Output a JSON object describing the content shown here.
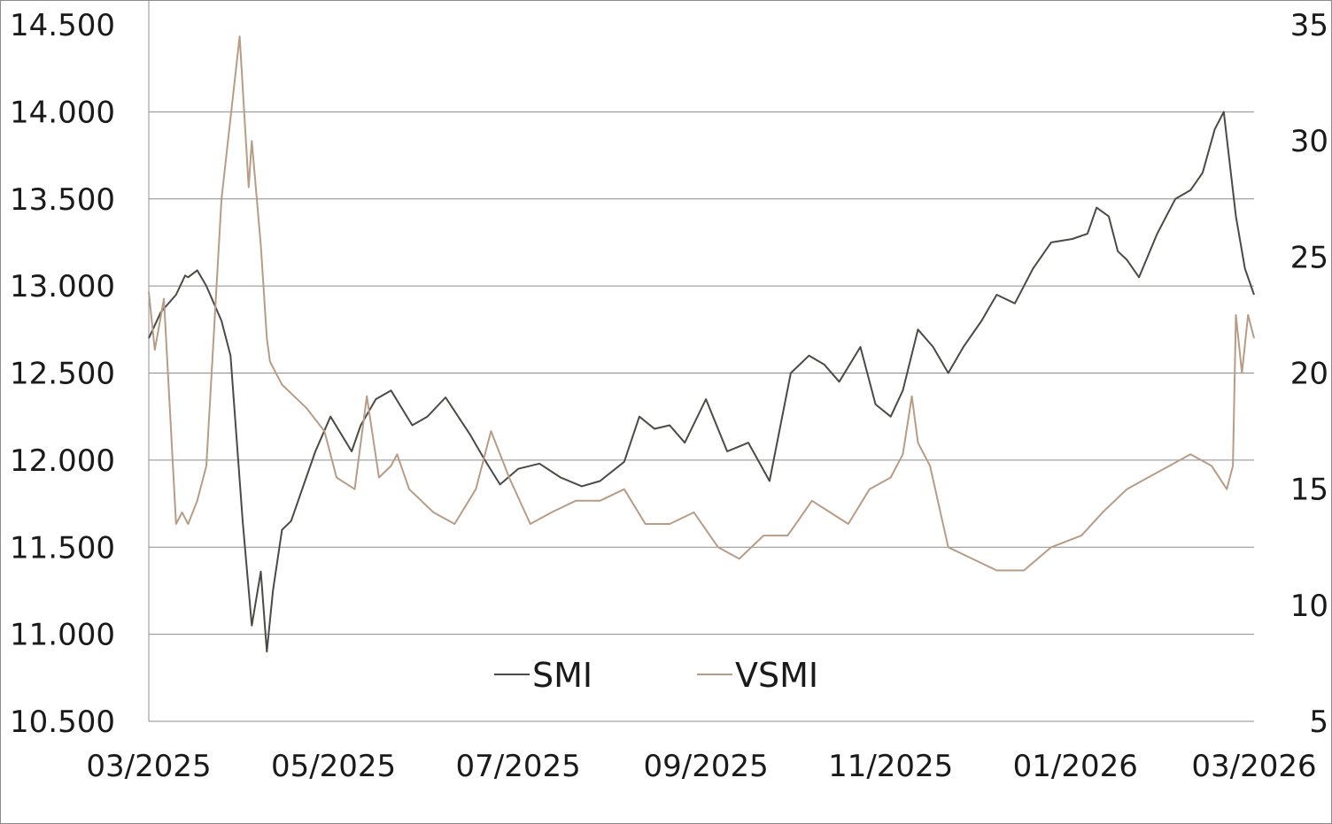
{
  "chart_data": {
    "type": "line",
    "title": "",
    "xlabel": "",
    "ylabel": "",
    "y2label": "",
    "grid": true,
    "legend": {
      "placement": "bottom-center",
      "entries": [
        "SMI",
        "VSMI"
      ]
    },
    "x_ticks": [
      "03/2025",
      "05/2025",
      "07/2025",
      "09/2025",
      "11/2025",
      "01/2026",
      "03/2026"
    ],
    "y_left": {
      "ylim": [
        10500,
        14500
      ],
      "ticks": [
        10500,
        11000,
        11500,
        12000,
        12500,
        13000,
        13500,
        14000,
        14500
      ],
      "tick_labels": [
        "10.500",
        "11.000",
        "11.500",
        "12.000",
        "12.500",
        "13.000",
        "13.500",
        "14.000",
        "14.500"
      ]
    },
    "y_right": {
      "ylim": [
        5,
        35
      ],
      "ticks": [
        5,
        10,
        15,
        20,
        25,
        30,
        35
      ],
      "tick_labels": [
        "5",
        "10",
        "15",
        "20",
        "25",
        "30",
        "35"
      ]
    },
    "xlim": [
      "2025-03-01",
      "2026-03-01"
    ],
    "series": [
      {
        "name": "SMI",
        "axis": "left",
        "color": "#4a4a46",
        "x": [
          "2025-03-01",
          "2025-03-05",
          "2025-03-10",
          "2025-03-13",
          "2025-03-14",
          "2025-03-17",
          "2025-03-20",
          "2025-03-25",
          "2025-03-28",
          "2025-04-01",
          "2025-04-04",
          "2025-04-07",
          "2025-04-09",
          "2025-04-11",
          "2025-04-14",
          "2025-04-17",
          "2025-04-22",
          "2025-04-25",
          "2025-04-30",
          "2025-05-07",
          "2025-05-10",
          "2025-05-15",
          "2025-05-20",
          "2025-05-27",
          "2025-06-01",
          "2025-06-07",
          "2025-06-15",
          "2025-06-20",
          "2025-06-25",
          "2025-07-01",
          "2025-07-08",
          "2025-07-15",
          "2025-07-22",
          "2025-07-28",
          "2025-08-05",
          "2025-08-10",
          "2025-08-15",
          "2025-08-20",
          "2025-08-25",
          "2025-09-01",
          "2025-09-08",
          "2025-09-15",
          "2025-09-22",
          "2025-09-29",
          "2025-10-05",
          "2025-10-10",
          "2025-10-15",
          "2025-10-22",
          "2025-10-27",
          "2025-11-01",
          "2025-11-05",
          "2025-11-10",
          "2025-11-15",
          "2025-11-20",
          "2025-11-25",
          "2025-12-01",
          "2025-12-06",
          "2025-12-12",
          "2025-12-18",
          "2025-12-24",
          "2025-12-31",
          "2026-01-05",
          "2026-01-08",
          "2026-01-12",
          "2026-01-15",
          "2026-01-18",
          "2026-01-22",
          "2026-01-28",
          "2026-02-03",
          "2026-02-08",
          "2026-02-12",
          "2026-02-16",
          "2026-02-19",
          "2026-02-20",
          "2026-02-23",
          "2026-02-26",
          "2026-03-01"
        ],
        "values": [
          12700,
          12850,
          12950,
          13060,
          13050,
          13090,
          13000,
          12800,
          12600,
          11650,
          11050,
          11360,
          10900,
          11250,
          11600,
          11650,
          11900,
          12050,
          12250,
          12050,
          12200,
          12350,
          12400,
          12200,
          12250,
          12360,
          12150,
          12000,
          11860,
          11950,
          11980,
          11900,
          11850,
          11880,
          11990,
          12250,
          12180,
          12200,
          12100,
          12350,
          12050,
          12100,
          11880,
          12500,
          12600,
          12550,
          12450,
          12650,
          12320,
          12250,
          12400,
          12750,
          12650,
          12500,
          12650,
          12800,
          12950,
          12900,
          13100,
          13250,
          13270,
          13300,
          13450,
          13400,
          13200,
          13150,
          13050,
          13300,
          13500,
          13550,
          13650,
          13900,
          14000,
          13850,
          13400,
          13100,
          12950
        ]
      },
      {
        "name": "VSMI",
        "axis": "right",
        "color": "#b89c85",
        "x": [
          "2025-03-01",
          "2025-03-03",
          "2025-03-06",
          "2025-03-10",
          "2025-03-12",
          "2025-03-14",
          "2025-03-17",
          "2025-03-20",
          "2025-03-25",
          "2025-03-31",
          "2025-04-03",
          "2025-04-04",
          "2025-04-07",
          "2025-04-08",
          "2025-04-09",
          "2025-04-10",
          "2025-04-14",
          "2025-04-18",
          "2025-04-22",
          "2025-04-28",
          "2025-05-02",
          "2025-05-08",
          "2025-05-12",
          "2025-05-16",
          "2025-05-20",
          "2025-05-22",
          "2025-05-26",
          "2025-06-03",
          "2025-06-10",
          "2025-06-17",
          "2025-06-22",
          "2025-06-28",
          "2025-07-05",
          "2025-07-12",
          "2025-07-20",
          "2025-07-28",
          "2025-08-05",
          "2025-08-12",
          "2025-08-20",
          "2025-08-28",
          "2025-09-05",
          "2025-09-12",
          "2025-09-20",
          "2025-09-28",
          "2025-10-06",
          "2025-10-12",
          "2025-10-18",
          "2025-10-25",
          "2025-11-01",
          "2025-11-05",
          "2025-11-08",
          "2025-11-10",
          "2025-11-14",
          "2025-11-20",
          "2025-11-28",
          "2025-12-06",
          "2025-12-15",
          "2025-12-24",
          "2026-01-03",
          "2026-01-10",
          "2026-01-18",
          "2026-01-25",
          "2026-02-01",
          "2026-02-08",
          "2026-02-15",
          "2026-02-20",
          "2026-02-22",
          "2026-02-23",
          "2026-02-25",
          "2026-02-27",
          "2026-03-01"
        ],
        "values": [
          23.5,
          21.0,
          23.2,
          13.5,
          14.0,
          13.5,
          14.5,
          16.0,
          27.5,
          34.5,
          28.0,
          30.0,
          25.5,
          23.5,
          21.5,
          20.5,
          19.5,
          19.0,
          18.5,
          17.5,
          15.5,
          15.0,
          19.0,
          15.5,
          16.0,
          16.5,
          15.0,
          14.0,
          13.5,
          15.0,
          17.5,
          15.5,
          13.5,
          14.0,
          14.5,
          14.5,
          15.0,
          13.5,
          13.5,
          14.0,
          12.5,
          12.0,
          13.0,
          13.0,
          14.5,
          14.0,
          13.5,
          15.0,
          15.5,
          16.5,
          19.0,
          17.0,
          16.0,
          12.5,
          12.0,
          11.5,
          11.5,
          12.5,
          13.0,
          14.0,
          15.0,
          15.5,
          16.0,
          16.5,
          16.0,
          15.0,
          16.0,
          22.5,
          20.0,
          22.5,
          21.5
        ]
      }
    ]
  }
}
